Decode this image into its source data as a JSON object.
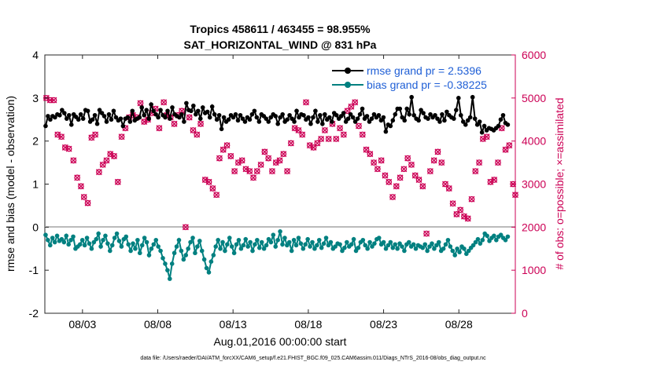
{
  "chart_data": {
    "type": "line",
    "title": "Tropics 458611 / 463455 = 98.955%",
    "subtitle": "SAT_HORIZONTAL_WIND @ 831 hPa",
    "xlabel": "Aug.01,2016 00:00:00 start",
    "ylabel_left": "rmse and bias (model - observation)",
    "ylabel_right": "# of obs: o=possible; ×=assimilated",
    "footer": "data file: /Users/raeder/DAI/ATM_forcXX/CAM6_setup/f.e21.FHIST_BGC.f09_025.CAM6assim.011/Diags_NTrS_2016-08/obs_diag_output.nc",
    "xlim": [
      0.5,
      31.75
    ],
    "x_ticks": [
      3,
      8,
      13,
      18,
      23,
      28
    ],
    "x_tick_labels": [
      "08/03",
      "08/08",
      "08/13",
      "08/18",
      "08/23",
      "08/28"
    ],
    "ylim_left": [
      -2,
      4
    ],
    "yticks_left": [
      "-2",
      "-1",
      "0",
      "1",
      "2",
      "3",
      "4"
    ],
    "ylim_right": [
      0,
      6000
    ],
    "yticks_right": [
      "0",
      "1000",
      "2000",
      "3000",
      "4000",
      "5000",
      "6000"
    ],
    "colors": {
      "rmse": "#000000",
      "bias": "#008080",
      "obs": "#cc0055",
      "zero": "#bbbbbb",
      "legend_text": "#1f5fd6"
    },
    "legend": [
      {
        "label": "rmse grand pr = 2.5396"
      },
      {
        "label": "bias grand pr = -0.38225"
      }
    ],
    "series": [
      {
        "name": "rmse",
        "values": [
          2.35,
          2.58,
          2.5,
          2.58,
          2.55,
          2.62,
          2.6,
          2.72,
          2.65,
          2.52,
          2.6,
          2.38,
          2.62,
          2.56,
          2.5,
          2.62,
          2.52,
          2.72,
          2.7,
          2.45,
          2.5,
          2.6,
          2.4,
          2.72,
          2.65,
          2.58,
          2.45,
          2.62,
          2.5,
          2.7,
          2.55,
          2.48,
          2.52,
          2.35,
          2.52,
          2.55,
          2.45,
          2.7,
          2.48,
          2.52,
          2.55,
          2.78,
          2.6,
          2.72,
          2.52,
          2.85,
          2.7,
          2.62,
          2.55,
          2.72,
          2.6,
          2.55,
          2.7,
          2.52,
          2.78,
          2.62,
          2.58,
          2.55,
          2.62,
          2.45,
          2.88,
          2.72,
          2.7,
          2.82,
          2.62,
          2.7,
          2.52,
          2.78,
          2.65,
          2.68,
          2.55,
          2.8,
          2.62,
          2.5,
          2.6,
          2.28,
          2.55,
          2.45,
          2.5,
          2.6,
          2.55,
          2.62,
          2.48,
          2.6,
          2.52,
          2.45,
          2.55,
          2.5,
          2.62,
          2.7,
          2.55,
          2.45,
          2.62,
          2.58,
          2.52,
          2.45,
          2.55,
          2.62,
          2.58,
          2.4,
          2.55,
          2.62,
          2.45,
          2.5,
          2.6,
          2.52,
          2.45,
          2.7,
          2.55,
          2.62,
          2.6,
          2.5,
          2.55,
          2.4,
          2.55,
          2.7,
          2.45,
          2.6,
          2.4,
          2.62,
          2.5,
          2.55,
          2.45,
          2.65,
          2.6,
          2.52,
          2.58,
          2.65,
          2.45,
          2.52,
          2.62,
          2.55,
          2.45,
          2.52,
          2.62,
          2.75,
          2.52,
          2.58,
          2.45,
          2.52,
          2.62,
          2.55,
          2.6,
          2.48,
          2.55,
          2.22,
          2.38,
          2.35,
          2.48,
          2.62,
          2.75,
          2.75,
          2.55,
          2.48,
          2.75,
          2.62,
          3.02,
          2.6,
          2.52,
          2.48,
          2.72,
          2.65,
          2.55,
          2.52,
          2.62,
          2.55,
          2.6,
          2.52,
          2.45,
          2.62,
          2.48,
          2.68,
          2.6,
          2.55,
          2.52,
          2.72,
          3.0,
          2.6,
          2.45,
          2.38,
          2.48,
          2.55,
          3.02,
          2.52,
          2.38,
          2.45,
          2.2,
          2.35,
          2.25,
          2.3,
          2.28,
          2.25,
          2.3,
          2.35,
          2.5,
          2.6,
          2.42,
          2.38
        ]
      },
      {
        "name": "bias",
        "values": [
          -0.18,
          -0.3,
          -0.42,
          -0.25,
          -0.35,
          -0.2,
          -0.32,
          -0.28,
          -0.35,
          -0.2,
          -0.4,
          -0.3,
          -0.22,
          -0.5,
          -0.45,
          -0.4,
          -0.3,
          -0.42,
          -0.25,
          -0.38,
          -0.5,
          -0.35,
          -0.28,
          -0.15,
          -0.45,
          -0.3,
          -0.2,
          -0.38,
          -0.55,
          -0.42,
          -0.25,
          -0.15,
          -0.32,
          -0.45,
          -0.28,
          -0.22,
          -0.4,
          -0.55,
          -0.38,
          -0.5,
          -0.3,
          -0.6,
          -0.42,
          -0.25,
          -0.35,
          -0.65,
          -0.5,
          -0.4,
          -0.3,
          -0.45,
          -0.55,
          -0.72,
          -0.85,
          -1.0,
          -1.2,
          -0.85,
          -0.6,
          -0.45,
          -0.3,
          -0.55,
          -0.75,
          -0.65,
          -0.5,
          -0.35,
          -0.25,
          -0.6,
          -0.45,
          -0.32,
          -0.55,
          -0.75,
          -0.95,
          -1.05,
          -0.8,
          -0.65,
          -0.45,
          -0.3,
          -0.5,
          -0.35,
          -0.55,
          -0.4,
          -0.25,
          -0.45,
          -0.6,
          -0.4,
          -0.3,
          -0.5,
          -0.42,
          -0.28,
          -0.45,
          -0.35,
          -0.55,
          -0.4,
          -0.3,
          -0.48,
          -0.35,
          -0.5,
          -0.42,
          -0.28,
          -0.35,
          -0.18,
          -0.45,
          -0.3,
          -0.1,
          -0.4,
          -0.25,
          -0.42,
          -0.35,
          -0.55,
          -0.3,
          -0.42,
          -0.25,
          -0.38,
          -0.5,
          -0.4,
          -0.28,
          -0.45,
          -0.35,
          -0.5,
          -0.42,
          -0.3,
          -0.48,
          -0.38,
          -0.25,
          -0.42,
          -0.35,
          -0.5,
          -0.45,
          -0.38,
          -0.4,
          -0.55,
          -0.48,
          -0.35,
          -0.45,
          -0.4,
          -0.28,
          -0.55,
          -0.48,
          -0.35,
          -0.3,
          -0.42,
          -0.5,
          -0.35,
          -0.45,
          -0.38,
          -0.28,
          -0.25,
          -0.4,
          -0.35,
          -0.5,
          -0.42,
          -0.35,
          -0.48,
          -0.4,
          -0.5,
          -0.38,
          -0.45,
          -0.55,
          -0.4,
          -0.35,
          -0.45,
          -0.4,
          -0.5,
          -0.42,
          -0.45,
          -0.48,
          -0.4,
          -0.55,
          -0.45,
          -0.38,
          -0.5,
          -0.42,
          -0.35,
          -0.55,
          -0.5,
          -0.4,
          -0.3,
          -0.45,
          -0.55,
          -0.65,
          -0.5,
          -0.58,
          -0.45,
          -0.5,
          -0.62,
          -0.55,
          -0.48,
          -0.42,
          -0.35,
          -0.28,
          -0.38,
          -0.3,
          -0.15,
          -0.2,
          -0.32,
          -0.25,
          -0.2,
          -0.3,
          -0.22,
          -0.18,
          -0.25,
          -0.3,
          -0.22
        ]
      },
      {
        "name": "obs_count",
        "marker": "o and × overlaid",
        "points": [
          [
            0.6,
            5000
          ],
          [
            0.85,
            4950
          ],
          [
            1.1,
            4950
          ],
          [
            1.35,
            4150
          ],
          [
            1.6,
            4100
          ],
          [
            1.85,
            3850
          ],
          [
            2.1,
            3820
          ],
          [
            2.4,
            3550
          ],
          [
            2.65,
            3150
          ],
          [
            2.9,
            2950
          ],
          [
            3.1,
            2700
          ],
          [
            3.35,
            2560
          ],
          [
            3.6,
            4080
          ],
          [
            3.85,
            4150
          ],
          [
            4.1,
            3280
          ],
          [
            4.35,
            3450
          ],
          [
            4.6,
            3550
          ],
          [
            4.85,
            3700
          ],
          [
            5.1,
            3650
          ],
          [
            5.35,
            3050
          ],
          [
            5.6,
            4100
          ],
          [
            5.85,
            4300
          ],
          [
            6.1,
            4550
          ],
          [
            6.35,
            4600
          ],
          [
            6.6,
            4550
          ],
          [
            6.85,
            4880
          ],
          [
            7.1,
            4450
          ],
          [
            7.35,
            4500
          ],
          [
            7.6,
            4650
          ],
          [
            7.85,
            4750
          ],
          [
            8.1,
            4300
          ],
          [
            8.4,
            4900
          ],
          [
            8.6,
            4600
          ],
          [
            8.85,
            4550
          ],
          [
            9.1,
            4400
          ],
          [
            9.35,
            4600
          ],
          [
            9.6,
            4700
          ],
          [
            9.85,
            2000
          ],
          [
            10.1,
            4550
          ],
          [
            10.35,
            4250
          ],
          [
            10.6,
            4150
          ],
          [
            10.85,
            4400
          ],
          [
            11.15,
            3100
          ],
          [
            11.4,
            3050
          ],
          [
            11.65,
            2900
          ],
          [
            11.9,
            2750
          ],
          [
            12.1,
            3600
          ],
          [
            12.35,
            3800
          ],
          [
            12.6,
            3900
          ],
          [
            12.85,
            3650
          ],
          [
            13.1,
            3300
          ],
          [
            13.35,
            3500
          ],
          [
            13.6,
            3550
          ],
          [
            13.85,
            3350
          ],
          [
            14.1,
            3300
          ],
          [
            14.35,
            3150
          ],
          [
            14.6,
            3300
          ],
          [
            14.85,
            3450
          ],
          [
            15.1,
            3750
          ],
          [
            15.35,
            3600
          ],
          [
            15.6,
            3300
          ],
          [
            15.85,
            3500
          ],
          [
            16.1,
            3550
          ],
          [
            16.35,
            3700
          ],
          [
            16.6,
            3300
          ],
          [
            16.85,
            3950
          ],
          [
            17.1,
            4300
          ],
          [
            17.35,
            4250
          ],
          [
            17.6,
            4150
          ],
          [
            17.85,
            4900
          ],
          [
            18.1,
            3900
          ],
          [
            18.35,
            3850
          ],
          [
            18.6,
            3950
          ],
          [
            18.85,
            4050
          ],
          [
            19.1,
            4250
          ],
          [
            19.35,
            4050
          ],
          [
            19.6,
            4400
          ],
          [
            19.85,
            4050
          ],
          [
            20.1,
            4300
          ],
          [
            20.35,
            4150
          ],
          [
            20.6,
            4700
          ],
          [
            20.85,
            4800
          ],
          [
            21.1,
            4900
          ],
          [
            21.35,
            4350
          ],
          [
            21.6,
            4150
          ],
          [
            21.85,
            3800
          ],
          [
            22.1,
            3700
          ],
          [
            22.35,
            3500
          ],
          [
            22.6,
            3350
          ],
          [
            22.85,
            3550
          ],
          [
            23.1,
            3200
          ],
          [
            23.35,
            3050
          ],
          [
            23.6,
            2700
          ],
          [
            23.85,
            2950
          ],
          [
            24.1,
            3150
          ],
          [
            24.35,
            3350
          ],
          [
            24.6,
            3600
          ],
          [
            24.85,
            3450
          ],
          [
            25.1,
            3200
          ],
          [
            25.35,
            3100
          ],
          [
            25.6,
            2950
          ],
          [
            25.85,
            1850
          ],
          [
            26.1,
            3300
          ],
          [
            26.35,
            3550
          ],
          [
            26.6,
            3750
          ],
          [
            26.85,
            3500
          ],
          [
            27.1,
            3000
          ],
          [
            27.35,
            2900
          ],
          [
            27.6,
            2550
          ],
          [
            27.85,
            2300
          ],
          [
            28.1,
            2400
          ],
          [
            28.35,
            2250
          ],
          [
            28.6,
            2200
          ],
          [
            28.85,
            2650
          ],
          [
            29.1,
            3300
          ],
          [
            29.35,
            3500
          ],
          [
            29.6,
            4050
          ],
          [
            29.85,
            4100
          ],
          [
            30.1,
            3050
          ],
          [
            30.35,
            3100
          ],
          [
            30.6,
            3500
          ],
          [
            30.85,
            4300
          ],
          [
            31.1,
            3800
          ],
          [
            31.35,
            3900
          ],
          [
            31.6,
            3000
          ],
          [
            31.75,
            2750
          ]
        ]
      }
    ]
  }
}
